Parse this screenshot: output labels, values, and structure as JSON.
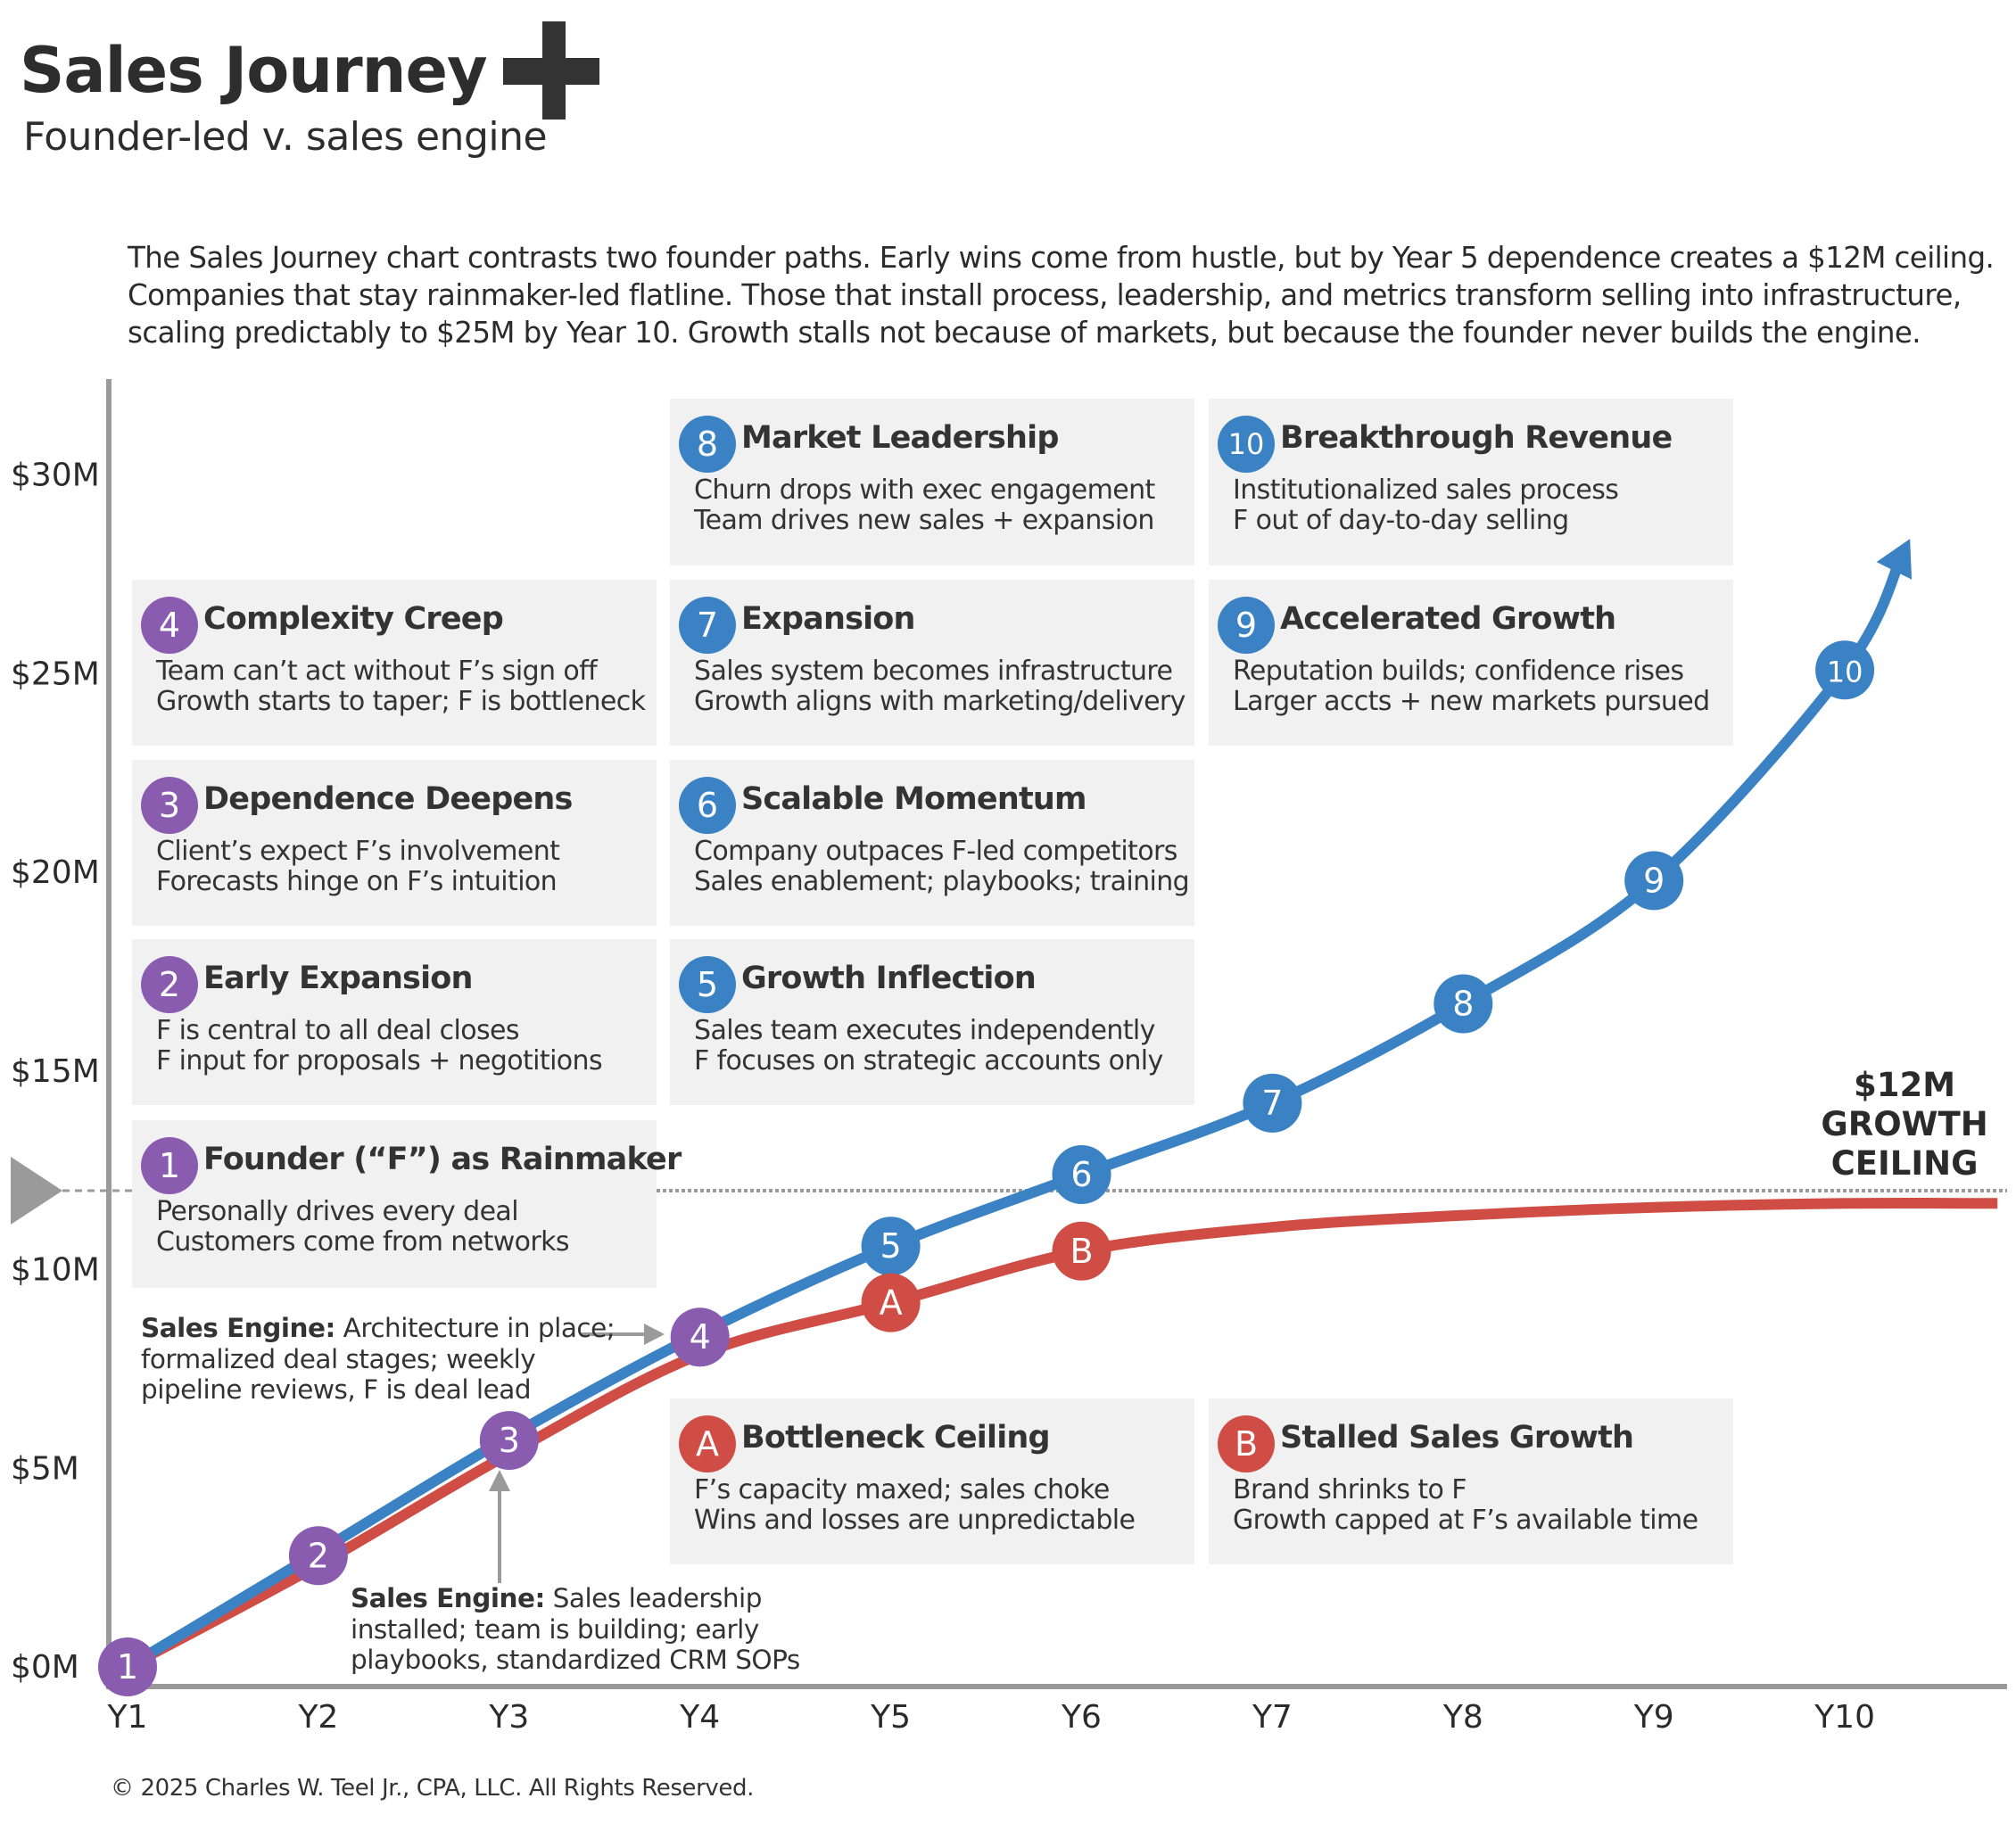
{
  "header": {
    "title": "Sales Journey",
    "subtitle": "Founder-led v. sales engine",
    "logo_icon": "plus-icon"
  },
  "intro": {
    "lines": [
      "The Sales Journey chart contrasts two founder paths. Early wins come from hustle, but by Year 5 dependence creates a $12M ceiling.",
      "Companies that stay rainmaker-led flatline. Those that install process, leadership, and metrics transform selling into infrastructure,",
      "scaling predictably to $25M by Year 10. Growth stalls not because of markets, but because the founder never builds the engine."
    ]
  },
  "colors": {
    "founder_phase": "#8a5cb0",
    "sales_engine": "#3a82c4",
    "founder_led": "#cf4d45",
    "axis": "#9a9a9a",
    "box_bg": "#f1f1f1",
    "text": "#2b2b2b"
  },
  "boxes": [
    {
      "badge": "8",
      "color_key": "sales_engine",
      "title": "Market Leadership",
      "lines": [
        "Churn drops with exec engagement",
        "Team drives new sales + expansion"
      ]
    },
    {
      "badge": "10",
      "color_key": "sales_engine",
      "title": "Breakthrough Revenue",
      "lines": [
        "Institutionalized sales process",
        "F out of day-to-day selling"
      ]
    },
    {
      "badge": "4",
      "color_key": "founder_phase",
      "title": "Complexity Creep",
      "lines": [
        "Team can’t act without F’s sign off",
        "Growth starts to taper; F is bottleneck"
      ]
    },
    {
      "badge": "7",
      "color_key": "sales_engine",
      "title": "Expansion",
      "lines": [
        "Sales system becomes infrastructure",
        "Growth aligns with marketing/delivery"
      ]
    },
    {
      "badge": "9",
      "color_key": "sales_engine",
      "title": "Accelerated Growth",
      "lines": [
        "Reputation builds; confidence rises",
        "Larger accts + new markets pursued"
      ]
    },
    {
      "badge": "3",
      "color_key": "founder_phase",
      "title": "Dependence Deepens",
      "lines": [
        "Client’s expect F’s involvement",
        "Forecasts hinge on F’s intuition"
      ]
    },
    {
      "badge": "6",
      "color_key": "sales_engine",
      "title": "Scalable Momentum",
      "lines": [
        "Company outpaces F-led competitors",
        "Sales enablement; playbooks; training"
      ]
    },
    {
      "badge": "2",
      "color_key": "founder_phase",
      "title": "Early Expansion",
      "lines": [
        "F is central to all deal closes",
        "F input for proposals + negotitions"
      ]
    },
    {
      "badge": "5",
      "color_key": "sales_engine",
      "title": "Growth Inflection",
      "lines": [
        "Sales team executes independently",
        "F focuses on strategic accounts only"
      ]
    },
    {
      "badge": "1",
      "color_key": "founder_phase",
      "title": "Founder (“F”) as Rainmaker",
      "lines": [
        "Personally drives every deal",
        "Customers come from networks"
      ]
    },
    {
      "badge": "A",
      "color_key": "founder_led",
      "title": "Bottleneck Ceiling",
      "lines": [
        "F’s capacity maxed; sales choke",
        "Wins and losses are unpredictable"
      ]
    },
    {
      "badge": "B",
      "color_key": "founder_led",
      "title": "Stalled Sales Growth",
      "lines": [
        "Brand shrinks to F",
        "Growth capped at F’s available time"
      ]
    }
  ],
  "notes": {
    "year4": {
      "bold": "Sales Engine:",
      "lines": [
        " Architecture in place;",
        "formalized deal stages; weekly",
        "pipeline reviews, F is deal lead"
      ]
    },
    "year3": {
      "bold": "Sales Engine:",
      "lines": [
        " Sales leadership",
        "installed; team is building; early",
        "playbooks, standardized CRM SOPs"
      ]
    }
  },
  "ceiling_label": [
    "$12M",
    "GROWTH",
    "CEILING"
  ],
  "footer": "© 2025 Charles W. Teel Jr., CPA, LLC.  All Rights Reserved.",
  "chart_data": {
    "type": "line",
    "title": "Sales Journey",
    "subtitle": "Founder-led v. sales engine",
    "xlabel": "",
    "ylabel": "",
    "x_ticks": [
      "Y1",
      "Y2",
      "Y3",
      "Y4",
      "Y5",
      "Y6",
      "Y7",
      "Y8",
      "Y9",
      "Y10"
    ],
    "y_ticks": [
      "$0M",
      "$5M",
      "$10M",
      "$15M",
      "$20M",
      "$25M",
      "$30M"
    ],
    "y_tick_values": [
      0,
      5,
      10,
      15,
      20,
      25,
      30
    ],
    "xlim": [
      1,
      10.8
    ],
    "ylim": [
      0,
      30
    ],
    "grid": false,
    "reference_line": {
      "label": "$12M GROWTH CEILING",
      "y": 12,
      "style": "dotted"
    },
    "series": [
      {
        "name": "Sales engine",
        "color": "#3a82c4",
        "x": [
          1,
          2,
          3,
          4,
          5,
          6,
          7,
          8,
          9,
          10,
          10.3
        ],
        "values": [
          0,
          2.8,
          5.7,
          8.3,
          10.5,
          12.3,
          14.1,
          16.6,
          19.7,
          25.0,
          27.9
        ],
        "arrow_end": true
      },
      {
        "name": "Founder-led",
        "color": "#cf4d45",
        "x": [
          1,
          2,
          3,
          4,
          5,
          6,
          7,
          8,
          9,
          10,
          10.8
        ],
        "values": [
          0,
          2.7,
          5.5,
          8.0,
          9.3,
          10.6,
          11.2,
          11.5,
          11.7,
          11.8,
          11.8
        ]
      }
    ],
    "markers": [
      {
        "label": "1",
        "series": "shared",
        "x": 1,
        "y": 0,
        "color": "#8a5cb0"
      },
      {
        "label": "2",
        "series": "shared",
        "x": 2,
        "y": 2.8,
        "color": "#8a5cb0"
      },
      {
        "label": "3",
        "series": "shared",
        "x": 3,
        "y": 5.7,
        "color": "#8a5cb0"
      },
      {
        "label": "4",
        "series": "shared",
        "x": 4,
        "y": 8.3,
        "color": "#8a5cb0"
      },
      {
        "label": "5",
        "series": "Sales engine",
        "x": 5,
        "y": 10.5,
        "color": "#3a82c4"
      },
      {
        "label": "6",
        "series": "Sales engine",
        "x": 6,
        "y": 12.3,
        "color": "#3a82c4"
      },
      {
        "label": "7",
        "series": "Sales engine",
        "x": 7,
        "y": 14.1,
        "color": "#3a82c4"
      },
      {
        "label": "8",
        "series": "Sales engine",
        "x": 8,
        "y": 16.6,
        "color": "#3a82c4"
      },
      {
        "label": "9",
        "series": "Sales engine",
        "x": 9,
        "y": 19.7,
        "color": "#3a82c4"
      },
      {
        "label": "10",
        "series": "Sales engine",
        "x": 10,
        "y": 25.0,
        "color": "#3a82c4"
      },
      {
        "label": "A",
        "series": "Founder-led",
        "x": 5,
        "y": 9.3,
        "color": "#cf4d45"
      },
      {
        "label": "B",
        "series": "Founder-led",
        "x": 6,
        "y": 10.6,
        "color": "#cf4d45"
      }
    ]
  }
}
